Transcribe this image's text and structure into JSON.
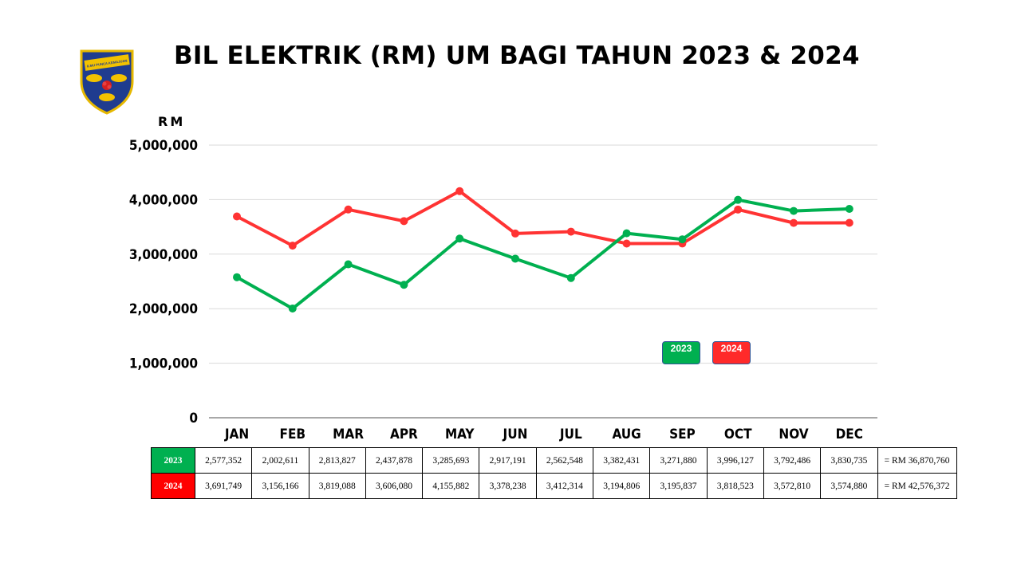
{
  "title": "BIL ELEKTRIK (RM) UM BAGI TAHUN 2023 & 2024",
  "logo": {
    "icon": "university-crest-icon",
    "motto": "ILMU PUNCA KEMAJUAN"
  },
  "colors": {
    "series_2023": "#00b050",
    "series_2024": "#ff3333",
    "grid": "#d9d9d9"
  },
  "legend": {
    "label_2023": "2023",
    "label_2024": "2024"
  },
  "chart_data": {
    "type": "line",
    "title": "BIL ELEKTRIK (RM) UM BAGI TAHUN 2023 & 2024",
    "ylabel": "RM",
    "xlabel": "",
    "ylim": [
      0,
      5000000
    ],
    "yticks": [
      0,
      1000000,
      2000000,
      3000000,
      4000000,
      5000000
    ],
    "ytick_labels": [
      "0",
      "1,000,000",
      "2,000,000",
      "3,000,000",
      "4,000,000",
      "5,000,000"
    ],
    "grid": true,
    "legend_position": "inside-bottom-right",
    "categories": [
      "JAN",
      "FEB",
      "MAR",
      "APR",
      "MAY",
      "JUN",
      "JUL",
      "AUG",
      "SEP",
      "OCT",
      "NOV",
      "DEC"
    ],
    "series": [
      {
        "name": "2023",
        "color": "#00b050",
        "values": [
          2577352,
          2002611,
          2813827,
          2437878,
          3285693,
          2917191,
          2562548,
          3382431,
          3271880,
          3996127,
          3792486,
          3830735
        ]
      },
      {
        "name": "2024",
        "color": "#ff3333",
        "values": [
          3691749,
          3156166,
          3819088,
          3606080,
          4155882,
          3378238,
          3412314,
          3194806,
          3195837,
          3818523,
          3572810,
          3574880
        ]
      }
    ]
  },
  "table": {
    "rows": [
      {
        "year": "2023",
        "values": [
          "2,577,352",
          "2,002,611",
          "2,813,827",
          "2,437,878",
          "3,285,693",
          "2,917,191",
          "2,562,548",
          "3,382,431",
          "3,271,880",
          "3,996,127",
          "3,792,486",
          "3,830,735"
        ],
        "total": "= RM 36,870,760"
      },
      {
        "year": "2024",
        "values": [
          "3,691,749",
          "3,156,166",
          "3,819,088",
          "3,606,080",
          "4,155,882",
          "3,378,238",
          "3,412,314",
          "3,194,806",
          "3,195,837",
          "3,818,523",
          "3,572,810",
          "3,574,880"
        ],
        "total": "= RM 42,576,372"
      }
    ]
  }
}
